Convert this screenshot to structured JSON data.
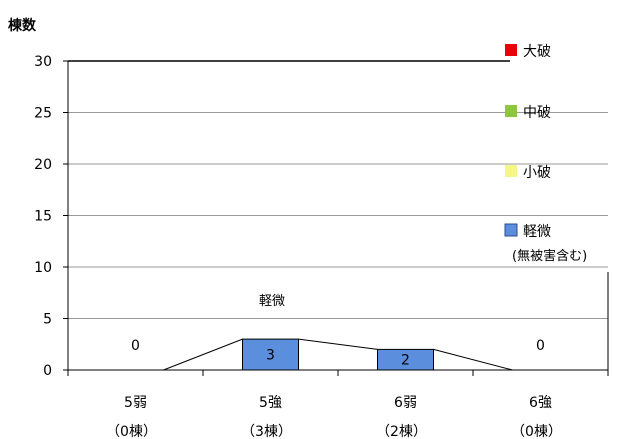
{
  "chart_data": {
    "type": "bar",
    "ylabel": "棟数",
    "ylim": [
      0,
      30
    ],
    "yticks": [
      "0",
      "5",
      "10",
      "15",
      "20",
      "25",
      "30"
    ],
    "categories": [
      {
        "line1": "5弱",
        "line2": "（0棟）"
      },
      {
        "line1": "5強",
        "line2": "（3棟）"
      },
      {
        "line1": "6弱",
        "line2": "（2棟）"
      },
      {
        "line1": "6強",
        "line2": "（0棟）"
      }
    ],
    "series": [
      {
        "name": "大破",
        "values": [
          0,
          0,
          0,
          0
        ],
        "color": "#e8000b"
      },
      {
        "name": "中破",
        "values": [
          0,
          0,
          0,
          0
        ],
        "color": "#8dc63f"
      },
      {
        "name": "小破",
        "values": [
          0,
          0,
          0,
          0
        ],
        "color": "#f5f58a"
      },
      {
        "name": "軽微",
        "name_sub": "(無被害含む)",
        "values": [
          0,
          3,
          2,
          0
        ],
        "color": "#5b8fde"
      }
    ],
    "data_labels": [
      "0",
      "3",
      "2",
      "0"
    ],
    "series_annotation": "軽微",
    "grid": true,
    "legend": "right"
  }
}
